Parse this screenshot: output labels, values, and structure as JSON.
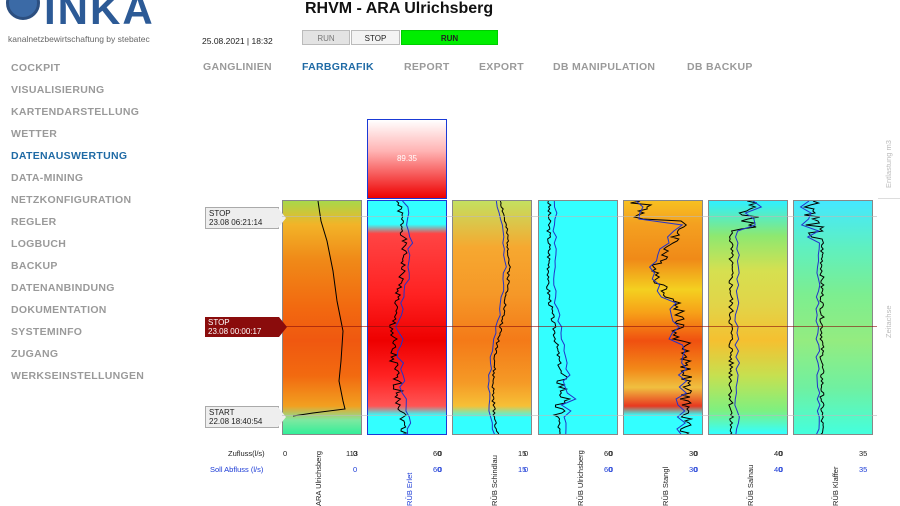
{
  "app": {
    "brand": "INKA",
    "tagline": "kanalnetzbewirtschaftung by stebatec",
    "title": "RHVM - ARA Ulrichsberg",
    "datetime": "25.08.2021 | 18:32"
  },
  "controls": {
    "run_off": "RUN",
    "stop": "STOP",
    "run_on": "RUN"
  },
  "sidebar": [
    "COCKPIT",
    "VISUALISIERUNG",
    "KARTENDARSTELLUNG",
    "WETTER",
    "DATENAUSWERTUNG",
    "DATA-MINING",
    "NETZKONFIGURATION",
    "REGLER",
    "LOGBUCH",
    "BACKUP",
    "DATENANBINDUNG",
    "DOKUMENTATION",
    "SYSTEMINFO",
    "ZUGANG",
    "WERKSEINSTELLUNGEN"
  ],
  "sidebar_active": 4,
  "tabs": [
    "GANGLINIEN",
    "FARBGRAFIK",
    "REPORT",
    "EXPORT",
    "DB MANIPULATION",
    "DB BACKUP"
  ],
  "tabs_active": 1,
  "markers": [
    {
      "label": "STOP",
      "time": "23.08 06:21:14",
      "style": "grey"
    },
    {
      "label": "STOP",
      "time": "23.08 00:00:17",
      "style": "red"
    },
    {
      "label": "START",
      "time": "22.08 18:40:54",
      "style": "grey"
    }
  ],
  "highlight_value": "89.35",
  "row_labels": {
    "zufluss": "Zufluss(l/s)",
    "abfluss": "Soll Abfluss (l/s)"
  },
  "side_labels": {
    "top": "Entlastung m3",
    "bottom": "Zeitachse"
  },
  "stations": [
    {
      "name": "ARA Ulrichsberg",
      "z_min": "0",
      "z_max": "113",
      "a_min": "",
      "a_max": ""
    },
    {
      "name": "RÜB Erlet",
      "z_min": "0",
      "z_max": "60",
      "a_min": "0",
      "a_max": "60",
      "selected": true
    },
    {
      "name": "RÜB Schindlau",
      "z_min": "0",
      "z_max": "15",
      "a_min": "0",
      "a_max": "15"
    },
    {
      "name": "RÜB Ulrichsberg",
      "z_min": "0",
      "z_max": "60",
      "a_min": "0",
      "a_max": "60"
    },
    {
      "name": "RÜB Stangl",
      "z_min": "0",
      "z_max": "30",
      "a_min": "0",
      "a_max": "30"
    },
    {
      "name": "RÜB Salnau",
      "z_min": "0",
      "z_max": "40",
      "a_min": "0",
      "a_max": "40"
    },
    {
      "name": "RÜB Klaffer",
      "z_min": "0",
      "z_max": "35",
      "a_min": "0",
      "a_max": "35"
    }
  ]
}
